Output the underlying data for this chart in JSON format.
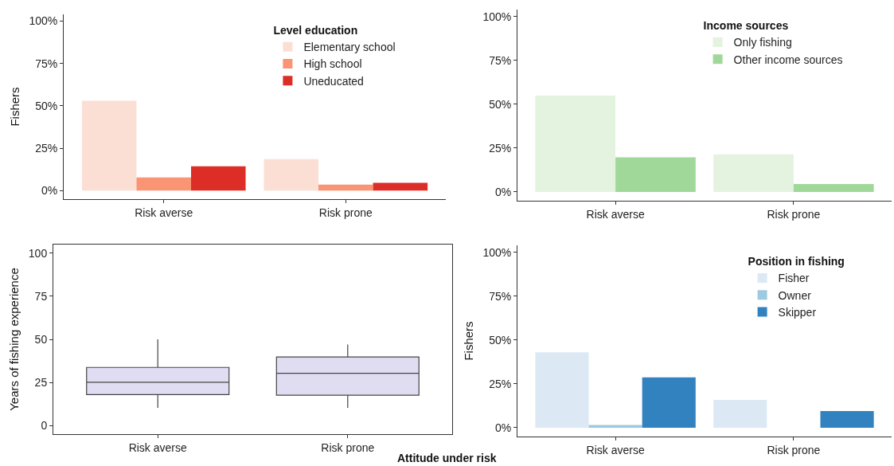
{
  "chart_data": [
    {
      "type": "bar",
      "ylabel": "Fishers",
      "legend_title": "Level education",
      "legend": "top right",
      "categories": [
        "Risk averse",
        "Risk prone"
      ],
      "ylim": [
        -5,
        104
      ],
      "yticks": [
        {
          "value": 0,
          "label": "0%"
        },
        {
          "value": 25,
          "label": "25%"
        },
        {
          "value": 50,
          "label": "50%"
        },
        {
          "value": 75,
          "label": "75%"
        },
        {
          "value": 100,
          "label": "100%"
        }
      ],
      "series": [
        {
          "name": "Elementary school",
          "color": "#fcdfd4",
          "values": [
            53,
            18.6
          ]
        },
        {
          "name": "High school",
          "color": "#f99474",
          "values": [
            7.8,
            3.6
          ]
        },
        {
          "name": "Uneducated",
          "color": "#dc2e27",
          "values": [
            14.4,
            4.6
          ]
        }
      ]
    },
    {
      "type": "bar",
      "legend_title": "Income sources",
      "legend": "top right",
      "categories": [
        "Risk averse",
        "Risk prone"
      ],
      "ylim": [
        -5,
        104
      ],
      "yticks": [
        {
          "value": 0,
          "label": "0%"
        },
        {
          "value": 25,
          "label": "25%"
        },
        {
          "value": 50,
          "label": "50%"
        },
        {
          "value": 75,
          "label": "75%"
        },
        {
          "value": 100,
          "label": "100%"
        }
      ],
      "series": [
        {
          "name": "Only fishing",
          "color": "#e4f3df",
          "values": [
            55,
            21.5
          ]
        },
        {
          "name": "Other income sources",
          "color": "#a0d89a",
          "values": [
            19.7,
            4.5
          ]
        }
      ]
    },
    {
      "type": "box",
      "ylabel": "Years of fishing experience",
      "xlabel": "Attitude under risk",
      "categories": [
        "Risk averse",
        "Risk prone"
      ],
      "ylim": [
        -5,
        105
      ],
      "yticks": [
        0,
        25,
        50,
        75,
        100
      ],
      "color": "#e0ddf3",
      "boxes": [
        {
          "low": 10.3,
          "q1": 17.9,
          "median": 25.1,
          "q3": 33.7,
          "high": 50
        },
        {
          "low": 10.3,
          "q1": 17.6,
          "median": 30.3,
          "q3": 39.8,
          "high": 47
        }
      ]
    },
    {
      "type": "bar",
      "ylabel": "Fishers",
      "legend_title": "Position in fishing",
      "legend": "top right",
      "categories": [
        "Risk averse",
        "Risk prone"
      ],
      "ylim": [
        -5,
        104
      ],
      "yticks": [
        {
          "value": 0,
          "label": "0%"
        },
        {
          "value": 25,
          "label": "25%"
        },
        {
          "value": 50,
          "label": "50%"
        },
        {
          "value": 75,
          "label": "75%"
        },
        {
          "value": 100,
          "label": "100%"
        }
      ],
      "series": [
        {
          "name": "Fisher",
          "color": "#dce9f5",
          "values": [
            43,
            15.9
          ]
        },
        {
          "name": "Owner",
          "color": "#9ecae1",
          "values": [
            1.6,
            null
          ]
        },
        {
          "name": "Skipper",
          "color": "#3282bf",
          "values": [
            28.7,
            9.5
          ]
        }
      ]
    }
  ]
}
